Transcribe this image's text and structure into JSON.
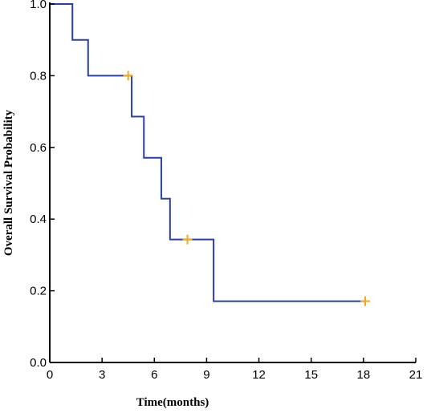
{
  "chart_data": {
    "type": "line",
    "subtype": "kaplan-meier step",
    "title": "",
    "xlabel": "Time(months)",
    "ylabel": "Overall Survival Probability",
    "xlim": [
      0,
      21
    ],
    "ylim": [
      0,
      1.0
    ],
    "x_ticks": [
      0,
      3,
      6,
      9,
      12,
      15,
      18,
      21
    ],
    "x_tick_labels": [
      "0",
      "3",
      "6",
      "9",
      "12",
      "15",
      "18",
      "21"
    ],
    "y_ticks": [
      0,
      0.2,
      0.4,
      0.6,
      0.8,
      1.0
    ],
    "y_tick_labels": [
      "0.0",
      "0.2",
      "0.4",
      "0.6",
      "0.8",
      "1.0"
    ],
    "grid": false,
    "legend": "none",
    "series": [
      {
        "color": "#2b3fa8",
        "steps": [
          {
            "x": 0,
            "y": 1.0
          },
          {
            "x": 1.3,
            "y": 0.9
          },
          {
            "x": 2.2,
            "y": 0.8
          },
          {
            "x": 4.7,
            "y": 0.686
          },
          {
            "x": 5.4,
            "y": 0.571
          },
          {
            "x": 6.4,
            "y": 0.457
          },
          {
            "x": 6.9,
            "y": 0.343
          },
          {
            "x": 9.4,
            "y": 0.171
          }
        ],
        "end_x": 18.1,
        "censored": [
          {
            "x": 4.5,
            "y": 0.8
          },
          {
            "x": 7.9,
            "y": 0.343
          },
          {
            "x": 18.1,
            "y": 0.171
          }
        ],
        "censor_color": "#f5a623"
      }
    ]
  }
}
